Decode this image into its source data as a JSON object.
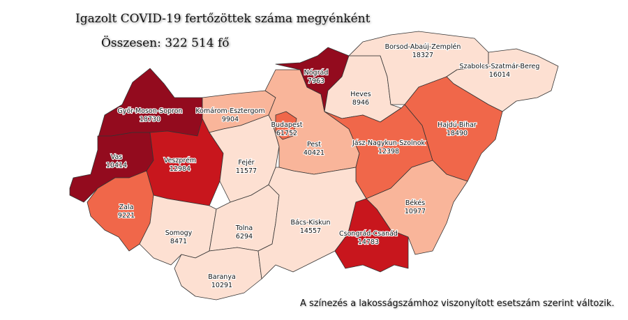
{
  "title": "Igazolt COVID-19 fertőzöttek száma megyénként",
  "total": "Összesen: 322 514 fő",
  "note": "A színezés a lakosságszámhoz viszonyított esetszám szerint változik.",
  "colors": {
    "c1": "#fde0d2",
    "c2": "#f9b59a",
    "c3": "#f0674a",
    "c4": "#c8161d",
    "c5": "#930b1e"
  },
  "counties": [
    {
      "name": "Győr-Moson-Sopron",
      "value": "18730",
      "cls": "c5"
    },
    {
      "name": "Vas",
      "value": "10414",
      "cls": "c5"
    },
    {
      "name": "Veszprém",
      "value": "12984",
      "cls": "c4"
    },
    {
      "name": "Zala",
      "value": "9221",
      "cls": "c3"
    },
    {
      "name": "Komárom-Esztergom",
      "value": "9904",
      "cls": "c2"
    },
    {
      "name": "Fejér",
      "value": "11577",
      "cls": "c1"
    },
    {
      "name": "Somogy",
      "value": "8471",
      "cls": "c1"
    },
    {
      "name": "Tolna",
      "value": "6294",
      "cls": "c1"
    },
    {
      "name": "Baranya",
      "value": "10291",
      "cls": "c1"
    },
    {
      "name": "Pest",
      "value": "40421",
      "cls": "c2"
    },
    {
      "name": "Budapest",
      "value": "61752",
      "cls": "c3"
    },
    {
      "name": "Nógrád",
      "value": "7963",
      "cls": "c5"
    },
    {
      "name": "Heves",
      "value": "8946",
      "cls": "c1"
    },
    {
      "name": "Borsod-Abaúj-Zemplén",
      "value": "18327",
      "cls": "c1"
    },
    {
      "name": "Szabolcs-Szatmár-Bereg",
      "value": "16014",
      "cls": "c1"
    },
    {
      "name": "Hajdú-Bihar",
      "value": "18490",
      "cls": "c3"
    },
    {
      "name": "Jász-Nagykun-Szolnok",
      "value": "12398",
      "cls": "c3"
    },
    {
      "name": "Békés",
      "value": "10977",
      "cls": "c2"
    },
    {
      "name": "Bács-Kiskun",
      "value": "14557",
      "cls": "c1"
    },
    {
      "name": "Csongrád-Csanád",
      "value": "14783",
      "cls": "c4"
    }
  ]
}
